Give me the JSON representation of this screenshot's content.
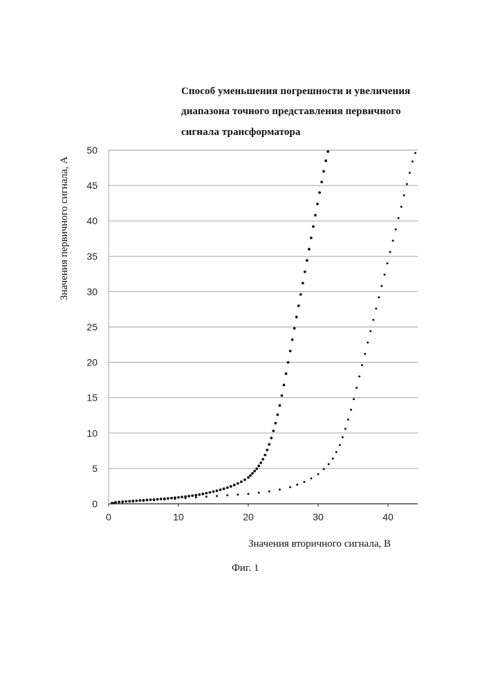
{
  "chart_data": {
    "type": "scatter",
    "title_lines": [
      "Способ уменьшения погрешности и увеличения",
      "диапазона точного представления первичного",
      "сигнала трансформатора"
    ],
    "xlabel": "Значения вторичного сигнала, В",
    "ylabel": "Значения первичного сигнала, А",
    "xlim": [
      0,
      45
    ],
    "ylim": [
      0,
      50
    ],
    "x_ticks": [
      0,
      10,
      20,
      30,
      40
    ],
    "y_ticks": [
      0,
      5,
      10,
      15,
      20,
      25,
      30,
      35,
      40,
      45,
      50
    ],
    "grid": "horizontal",
    "series": [
      {
        "name": "series-1",
        "color": "#111111",
        "points": [
          [
            0.5,
            0.1
          ],
          [
            1,
            0.2
          ],
          [
            1.5,
            0.25
          ],
          [
            2,
            0.3
          ],
          [
            2.5,
            0.33
          ],
          [
            3,
            0.36
          ],
          [
            3.5,
            0.4
          ],
          [
            4,
            0.43
          ],
          [
            4.5,
            0.47
          ],
          [
            5,
            0.5
          ],
          [
            5.5,
            0.53
          ],
          [
            6,
            0.57
          ],
          [
            6.5,
            0.6
          ],
          [
            7,
            0.64
          ],
          [
            7.5,
            0.68
          ],
          [
            8,
            0.72
          ],
          [
            8.5,
            0.76
          ],
          [
            9,
            0.8
          ],
          [
            9.5,
            0.85
          ],
          [
            10,
            0.9
          ],
          [
            10.5,
            0.96
          ],
          [
            11,
            1.02
          ],
          [
            11.5,
            1.08
          ],
          [
            12,
            1.15
          ],
          [
            12.5,
            1.22
          ],
          [
            13,
            1.3
          ],
          [
            13.5,
            1.4
          ],
          [
            14,
            1.5
          ],
          [
            14.5,
            1.6
          ],
          [
            15,
            1.72
          ],
          [
            15.5,
            1.84
          ],
          [
            16,
            1.98
          ],
          [
            16.5,
            2.12
          ],
          [
            17,
            2.28
          ],
          [
            17.5,
            2.45
          ],
          [
            18,
            2.65
          ],
          [
            18.5,
            2.88
          ],
          [
            19,
            3.12
          ],
          [
            19.5,
            3.4
          ],
          [
            20,
            3.72
          ],
          [
            20.3,
            4.0
          ],
          [
            20.6,
            4.3
          ],
          [
            20.9,
            4.62
          ],
          [
            21.2,
            4.95
          ],
          [
            21.5,
            5.35
          ],
          [
            21.8,
            5.8
          ],
          [
            22.1,
            6.3
          ],
          [
            22.4,
            6.9
          ],
          [
            22.7,
            7.6
          ],
          [
            23,
            8.4
          ],
          [
            23.3,
            9.3
          ],
          [
            23.6,
            10.3
          ],
          [
            23.9,
            11.4
          ],
          [
            24.2,
            12.6
          ],
          [
            24.5,
            13.9
          ],
          [
            24.8,
            15.3
          ],
          [
            25.1,
            16.8
          ],
          [
            25.4,
            18.4
          ],
          [
            25.7,
            20.0
          ],
          [
            26,
            21.6
          ],
          [
            26.3,
            23.2
          ],
          [
            26.6,
            24.8
          ],
          [
            26.9,
            26.4
          ],
          [
            27.2,
            28.0
          ],
          [
            27.5,
            29.6
          ],
          [
            27.8,
            31.2
          ],
          [
            28.1,
            32.8
          ],
          [
            28.4,
            34.4
          ],
          [
            28.7,
            36.0
          ],
          [
            29,
            37.6
          ],
          [
            29.3,
            39.2
          ],
          [
            29.6,
            40.8
          ],
          [
            29.9,
            42.4
          ],
          [
            30.2,
            44.0
          ],
          [
            30.5,
            45.5
          ],
          [
            30.8,
            47.0
          ],
          [
            31.1,
            48.5
          ],
          [
            31.4,
            49.8
          ]
        ]
      },
      {
        "name": "series-2",
        "color": "#111111",
        "points": [
          [
            0.8,
            0.1
          ],
          [
            2,
            0.2
          ],
          [
            3.5,
            0.3
          ],
          [
            5,
            0.4
          ],
          [
            6.5,
            0.5
          ],
          [
            8,
            0.6
          ],
          [
            9.5,
            0.7
          ],
          [
            11,
            0.8
          ],
          [
            12.5,
            0.9
          ],
          [
            14,
            1.0
          ],
          [
            15.5,
            1.1
          ],
          [
            17,
            1.2
          ],
          [
            18.5,
            1.3
          ],
          [
            20,
            1.4
          ],
          [
            21.5,
            1.55
          ],
          [
            23,
            1.75
          ],
          [
            24.5,
            2.0
          ],
          [
            26,
            2.35
          ],
          [
            27,
            2.7
          ],
          [
            28,
            3.1
          ],
          [
            29,
            3.6
          ],
          [
            30,
            4.2
          ],
          [
            30.8,
            4.9
          ],
          [
            31.5,
            5.6
          ],
          [
            32.1,
            6.4
          ],
          [
            32.6,
            7.3
          ],
          [
            33.1,
            8.3
          ],
          [
            33.5,
            9.4
          ],
          [
            33.9,
            10.6
          ],
          [
            34.3,
            11.9
          ],
          [
            34.7,
            13.3
          ],
          [
            35.1,
            14.8
          ],
          [
            35.5,
            16.4
          ],
          [
            35.9,
            18.0
          ],
          [
            36.3,
            19.6
          ],
          [
            36.7,
            21.2
          ],
          [
            37.1,
            22.8
          ],
          [
            37.5,
            24.4
          ],
          [
            37.9,
            26.0
          ],
          [
            38.3,
            27.6
          ],
          [
            38.7,
            29.2
          ],
          [
            39.1,
            30.8
          ],
          [
            39.5,
            32.4
          ],
          [
            39.9,
            34.0
          ],
          [
            40.3,
            35.6
          ],
          [
            40.7,
            37.2
          ],
          [
            41.1,
            38.8
          ],
          [
            41.5,
            40.4
          ],
          [
            41.9,
            42.0
          ],
          [
            42.3,
            43.6
          ],
          [
            42.7,
            45.2
          ],
          [
            43.1,
            46.8
          ],
          [
            43.5,
            48.4
          ],
          [
            43.9,
            49.6
          ]
        ]
      }
    ]
  },
  "figure": {
    "caption": "Фиг. 1"
  }
}
